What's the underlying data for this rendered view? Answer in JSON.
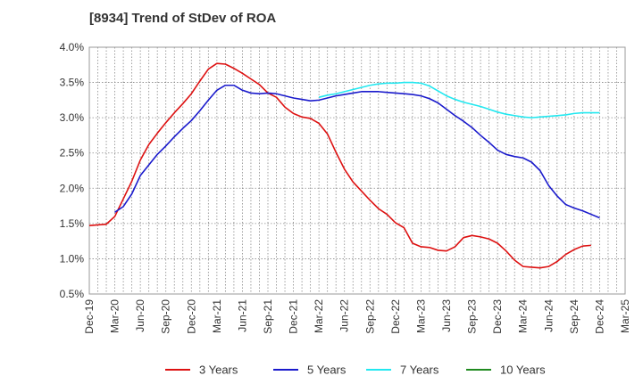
{
  "chart_data": {
    "type": "line",
    "title": "[8934]  Trend of StDev of ROA",
    "xlabel": "",
    "ylabel": "",
    "ylim": [
      0.5,
      4.0
    ],
    "y_ticks": [
      "4.0%",
      "3.5%",
      "3.0%",
      "2.5%",
      "2.0%",
      "1.5%",
      "1.0%",
      "0.5%"
    ],
    "x_ticks": [
      "Dec-19",
      "Mar-20",
      "Jun-20",
      "Sep-20",
      "Dec-20",
      "Mar-21",
      "Jun-21",
      "Sep-21",
      "Dec-21",
      "Mar-22",
      "Jun-22",
      "Sep-22",
      "Dec-22",
      "Mar-23",
      "Jun-23",
      "Sep-23",
      "Dec-23",
      "Mar-24",
      "Jun-24",
      "Sep-24",
      "Dec-24",
      "Mar-25"
    ],
    "grid": true,
    "legend_position": "bottom",
    "series": [
      {
        "name": "3 Years",
        "color": "#dd1111",
        "points": [
          [
            0,
            1.47
          ],
          [
            1,
            1.48
          ],
          [
            2,
            1.49
          ],
          [
            3,
            1.6
          ],
          [
            4,
            1.85
          ],
          [
            5,
            2.1
          ],
          [
            6,
            2.4
          ],
          [
            7,
            2.62
          ],
          [
            8,
            2.78
          ],
          [
            9,
            2.93
          ],
          [
            10,
            3.07
          ],
          [
            11,
            3.2
          ],
          [
            12,
            3.34
          ],
          [
            13,
            3.52
          ],
          [
            14,
            3.69
          ],
          [
            15,
            3.77
          ],
          [
            16,
            3.76
          ],
          [
            17,
            3.7
          ],
          [
            18,
            3.63
          ],
          [
            19,
            3.55
          ],
          [
            20,
            3.47
          ],
          [
            21,
            3.35
          ],
          [
            22,
            3.29
          ],
          [
            23,
            3.15
          ],
          [
            24,
            3.06
          ],
          [
            25,
            3.01
          ],
          [
            26,
            2.99
          ],
          [
            27,
            2.92
          ],
          [
            28,
            2.77
          ],
          [
            29,
            2.51
          ],
          [
            30,
            2.27
          ],
          [
            31,
            2.09
          ],
          [
            32,
            1.96
          ],
          [
            33,
            1.83
          ],
          [
            34,
            1.71
          ],
          [
            35,
            1.63
          ],
          [
            36,
            1.51
          ],
          [
            37,
            1.44
          ],
          [
            38,
            1.22
          ],
          [
            39,
            1.17
          ],
          [
            40,
            1.16
          ],
          [
            41,
            1.12
          ],
          [
            42,
            1.11
          ],
          [
            43,
            1.17
          ],
          [
            44,
            1.3
          ],
          [
            45,
            1.33
          ],
          [
            46,
            1.31
          ],
          [
            47,
            1.28
          ],
          [
            48,
            1.22
          ],
          [
            49,
            1.11
          ],
          [
            50,
            0.98
          ],
          [
            51,
            0.89
          ],
          [
            52,
            0.88
          ],
          [
            53,
            0.87
          ],
          [
            54,
            0.89
          ],
          [
            55,
            0.96
          ],
          [
            56,
            1.06
          ],
          [
            57,
            1.13
          ],
          [
            58,
            1.18
          ],
          [
            59,
            1.19
          ]
        ]
      },
      {
        "name": "5 Years",
        "color": "#1a1acc",
        "points": [
          [
            3,
            1.66
          ],
          [
            4,
            1.74
          ],
          [
            5,
            1.92
          ],
          [
            6,
            2.18
          ],
          [
            7,
            2.33
          ],
          [
            8,
            2.48
          ],
          [
            9,
            2.6
          ],
          [
            10,
            2.73
          ],
          [
            11,
            2.85
          ],
          [
            12,
            2.96
          ],
          [
            13,
            3.1
          ],
          [
            14,
            3.25
          ],
          [
            15,
            3.39
          ],
          [
            16,
            3.46
          ],
          [
            17,
            3.46
          ],
          [
            18,
            3.39
          ],
          [
            19,
            3.35
          ],
          [
            20,
            3.34
          ],
          [
            21,
            3.35
          ],
          [
            22,
            3.34
          ],
          [
            23,
            3.31
          ],
          [
            24,
            3.28
          ],
          [
            25,
            3.26
          ],
          [
            26,
            3.24
          ],
          [
            27,
            3.25
          ],
          [
            28,
            3.28
          ],
          [
            29,
            3.31
          ],
          [
            30,
            3.33
          ],
          [
            31,
            3.35
          ],
          [
            32,
            3.37
          ],
          [
            33,
            3.37
          ],
          [
            34,
            3.37
          ],
          [
            35,
            3.36
          ],
          [
            36,
            3.35
          ],
          [
            37,
            3.34
          ],
          [
            38,
            3.33
          ],
          [
            39,
            3.31
          ],
          [
            40,
            3.27
          ],
          [
            41,
            3.21
          ],
          [
            42,
            3.12
          ],
          [
            43,
            3.03
          ],
          [
            44,
            2.95
          ],
          [
            45,
            2.86
          ],
          [
            46,
            2.75
          ],
          [
            47,
            2.65
          ],
          [
            48,
            2.54
          ],
          [
            49,
            2.48
          ],
          [
            50,
            2.45
          ],
          [
            51,
            2.43
          ],
          [
            52,
            2.37
          ],
          [
            53,
            2.25
          ],
          [
            54,
            2.04
          ],
          [
            55,
            1.89
          ],
          [
            56,
            1.77
          ],
          [
            57,
            1.72
          ],
          [
            58,
            1.68
          ],
          [
            59,
            1.63
          ],
          [
            60,
            1.58
          ]
        ]
      },
      {
        "name": "7 Years",
        "color": "#22e8f0",
        "points": [
          [
            27,
            3.29
          ],
          [
            28,
            3.32
          ],
          [
            29,
            3.34
          ],
          [
            30,
            3.37
          ],
          [
            31,
            3.4
          ],
          [
            32,
            3.43
          ],
          [
            33,
            3.46
          ],
          [
            34,
            3.48
          ],
          [
            35,
            3.49
          ],
          [
            36,
            3.49
          ],
          [
            37,
            3.5
          ],
          [
            38,
            3.5
          ],
          [
            39,
            3.49
          ],
          [
            40,
            3.45
          ],
          [
            41,
            3.38
          ],
          [
            42,
            3.31
          ],
          [
            43,
            3.26
          ],
          [
            44,
            3.22
          ],
          [
            45,
            3.19
          ],
          [
            46,
            3.16
          ],
          [
            47,
            3.12
          ],
          [
            48,
            3.08
          ],
          [
            49,
            3.05
          ],
          [
            50,
            3.03
          ],
          [
            51,
            3.01
          ],
          [
            52,
            3.0
          ],
          [
            53,
            3.01
          ],
          [
            54,
            3.02
          ],
          [
            55,
            3.03
          ],
          [
            56,
            3.04
          ],
          [
            57,
            3.06
          ],
          [
            58,
            3.07
          ],
          [
            59,
            3.07
          ],
          [
            60,
            3.07
          ]
        ]
      },
      {
        "name": "10 Years",
        "color": "#1f8a1f",
        "points": []
      }
    ]
  }
}
